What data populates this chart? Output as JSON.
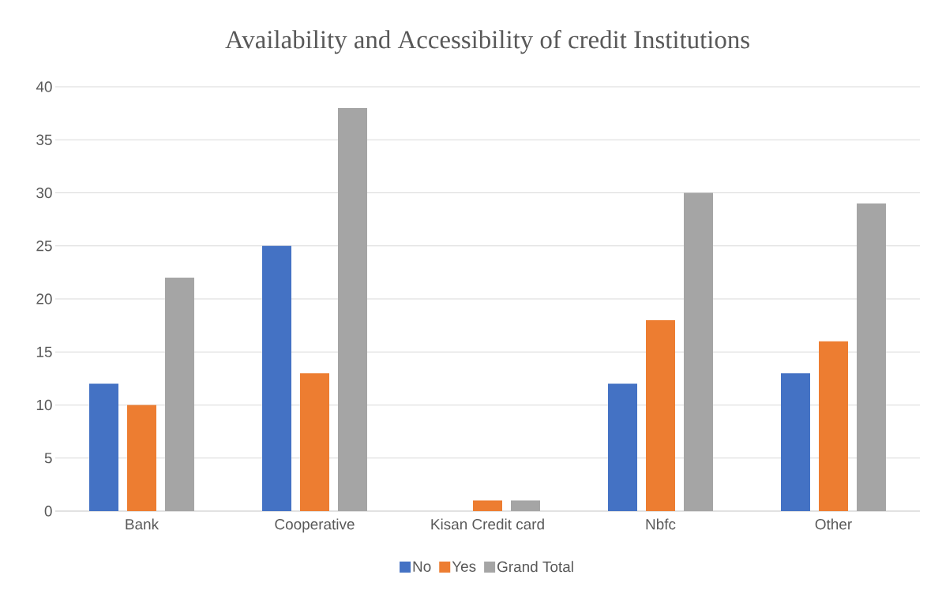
{
  "chart_data": {
    "type": "bar",
    "title": "Availability and Accessibility of credit Institutions",
    "categories": [
      "Bank",
      "Cooperative",
      "Kisan Credit card",
      "Nbfc",
      "Other"
    ],
    "series": [
      {
        "name": "No",
        "color": "#4472c4",
        "values": [
          12,
          25,
          0,
          12,
          13
        ]
      },
      {
        "name": "Yes",
        "color": "#ed7d31",
        "values": [
          10,
          13,
          1,
          18,
          16
        ]
      },
      {
        "name": "Grand Total",
        "color": "#a5a5a5",
        "values": [
          22,
          38,
          1,
          30,
          29
        ]
      }
    ],
    "ylim": [
      0,
      40
    ],
    "yticks": [
      0,
      5,
      10,
      15,
      20,
      25,
      30,
      35,
      40
    ],
    "grid": "y",
    "legend": "bottom"
  }
}
